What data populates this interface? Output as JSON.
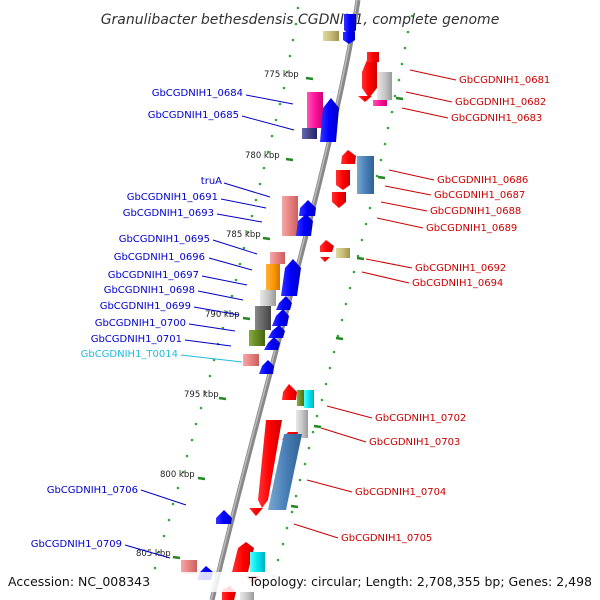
{
  "title": "Granulibacter bethesdensis CGDNIH1, complete genome",
  "footer": {
    "accession": "Accession: NC_008343",
    "topology": "Topology: circular; Length: 2,708,355 bp; Genes: 2,498"
  },
  "colors": {
    "left_label": "#0000cc",
    "right_label": "#cc0000",
    "rna_label": "#22bbdd",
    "backbone": "#888888",
    "tick": "#228822",
    "dot": "#33aa33"
  },
  "ticks": [
    {
      "label": "775 kbp"
    },
    {
      "label": "780 kbp"
    },
    {
      "label": "785 kbp"
    },
    {
      "label": "790 kbp"
    },
    {
      "label": "795 kbp"
    },
    {
      "label": "800 kbp"
    },
    {
      "label": "805 kbp"
    }
  ],
  "left_labels": [
    {
      "text": "GbCGDNIH1_0684"
    },
    {
      "text": "GbCGDNIH1_0685"
    },
    {
      "text": "truA"
    },
    {
      "text": "GbCGDNIH1_0691"
    },
    {
      "text": "GbCGDNIH1_0693"
    },
    {
      "text": "GbCGDNIH1_0695"
    },
    {
      "text": "GbCGDNIH1_0696"
    },
    {
      "text": "GbCGDNIH1_0697"
    },
    {
      "text": "GbCGDNIH1_0698"
    },
    {
      "text": "GbCGDNIH1_0699"
    },
    {
      "text": "GbCGDNIH1_0700"
    },
    {
      "text": "GbCGDNIH1_0701"
    },
    {
      "text": "GbCGDNIH1_T0014",
      "kind": "rna"
    },
    {
      "text": "GbCGDNIH1_0706"
    },
    {
      "text": "GbCGDNIH1_0709"
    }
  ],
  "right_labels": [
    {
      "text": "GbCGDNIH1_0681"
    },
    {
      "text": "GbCGDNIH1_0682"
    },
    {
      "text": "GbCGDNIH1_0683"
    },
    {
      "text": "GbCGDNIH1_0686"
    },
    {
      "text": "GbCGDNIH1_0687"
    },
    {
      "text": "GbCGDNIH1_0688"
    },
    {
      "text": "GbCGDNIH1_0689"
    },
    {
      "text": "GbCGDNIH1_0692"
    },
    {
      "text": "GbCGDNIH1_0694"
    },
    {
      "text": "GbCGDNIH1_0702"
    },
    {
      "text": "GbCGDNIH1_0703"
    },
    {
      "text": "GbCGDNIH1_0704"
    },
    {
      "text": "GbCGDNIH1_0705"
    }
  ]
}
